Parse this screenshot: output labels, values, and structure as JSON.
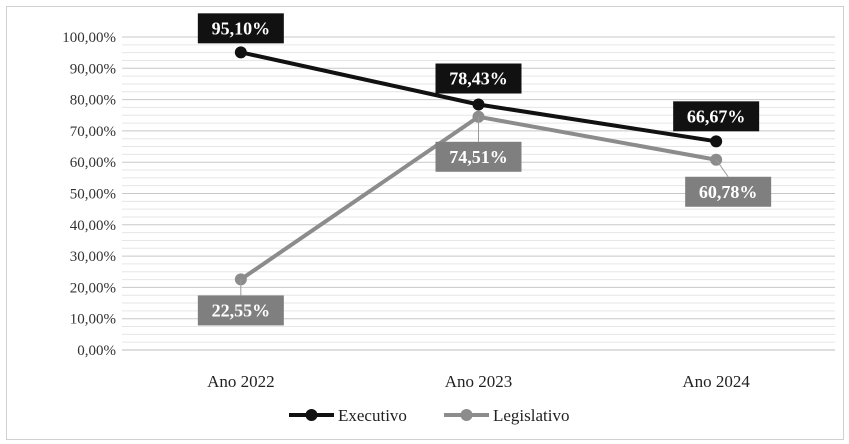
{
  "chart_data": {
    "type": "line",
    "categories": [
      "Ano 2022",
      "Ano 2023",
      "Ano 2024"
    ],
    "ylim": [
      0,
      100
    ],
    "y_ticks": [
      0,
      10,
      20,
      30,
      40,
      50,
      60,
      70,
      80,
      90,
      100
    ],
    "y_tick_labels": [
      "0,00%",
      "10,00%",
      "20,00%",
      "30,00%",
      "40,00%",
      "50,00%",
      "60,00%",
      "70,00%",
      "80,00%",
      "90,00%",
      "100,00%"
    ],
    "grid": "horizontal",
    "legend_position": "bottom",
    "series": [
      {
        "name": "Executivo",
        "values": [
          95.1,
          78.43,
          66.67
        ],
        "labels": [
          "95,10%",
          "78,43%",
          "66,67%"
        ],
        "color": "#111111",
        "label_bg": "#111111"
      },
      {
        "name": "Legislativo",
        "values": [
          22.55,
          74.51,
          60.78
        ],
        "labels": [
          "22,55%",
          "74,51%",
          "60,78%"
        ],
        "color": "#8c8c8c",
        "label_bg": "#7f7f7f"
      }
    ]
  }
}
